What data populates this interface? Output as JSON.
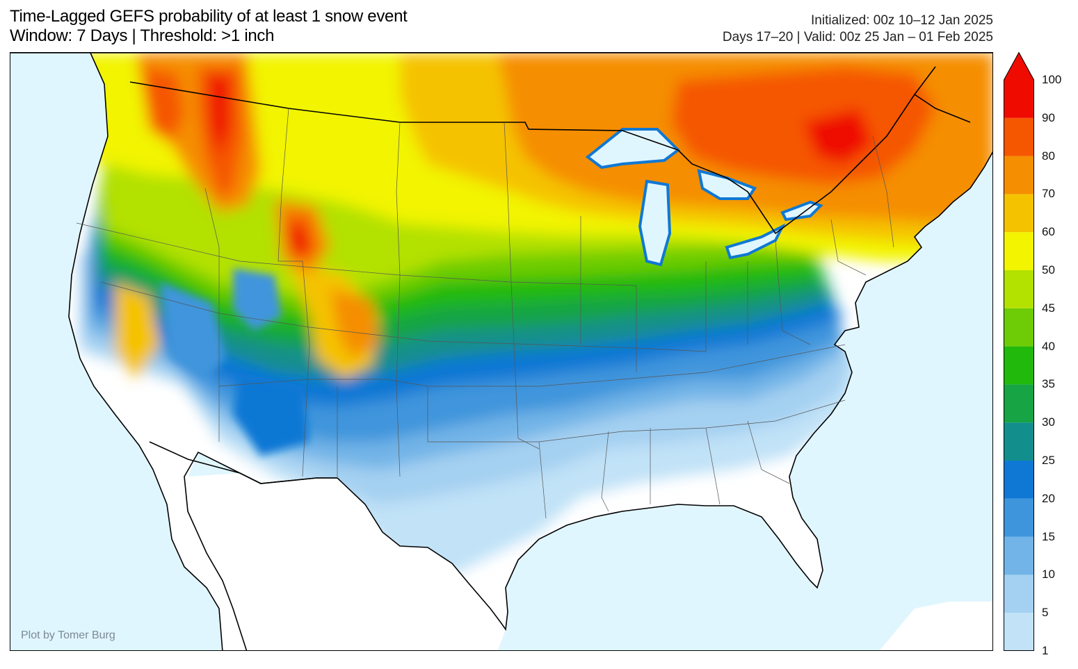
{
  "title": {
    "line1": "Time-Lagged GEFS probability of at least 1 snow event",
    "line2": "Window: 7 Days | Threshold: >1 inch"
  },
  "meta": {
    "initialized": "Initialized: 00z 10–12 Jan 2025",
    "valid": "Days 17–20 | Valid: 00z 25 Jan – 01 Feb 2025"
  },
  "credit": "Plot by Tomer Burg",
  "colorbar": {
    "levels": [
      "1",
      "5",
      "10",
      "15",
      "20",
      "25",
      "30",
      "35",
      "40",
      "45",
      "50",
      "60",
      "70",
      "80",
      "90",
      "100"
    ],
    "colors": [
      "#c1e2f7",
      "#a4d0f1",
      "#72b4e7",
      "#3f95dc",
      "#0f78d4",
      "#128f8c",
      "#16a445",
      "#21b90c",
      "#6dcc06",
      "#b3e100",
      "#f2f400",
      "#f5c200",
      "#f58e00",
      "#f55600",
      "#ef0b00"
    ],
    "extend": "max"
  },
  "map": {
    "ocean_color": "#e0f6ff",
    "land_color": "#ffffff"
  }
}
